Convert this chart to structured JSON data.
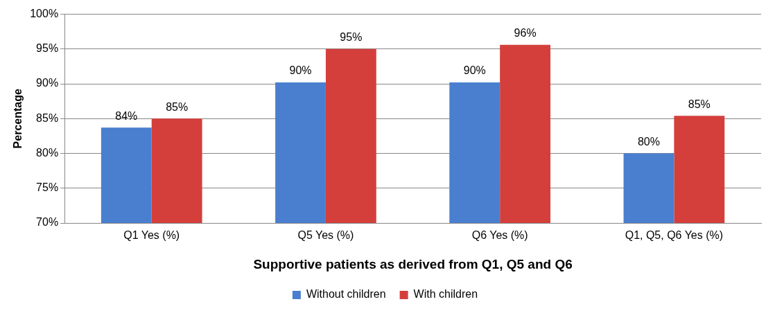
{
  "chart_data": {
    "type": "bar",
    "xlabel": "Supportive patients as derived from Q1, Q5 and Q6",
    "ylabel": "Percentage",
    "categories": [
      "Q1 Yes (%)",
      "Q5 Yes (%)",
      "Q6 Yes (%)",
      "Q1, Q5, Q6 Yes (%)"
    ],
    "series": [
      {
        "name": "Without children",
        "color": "#4a7fcf",
        "values": [
          83.7,
          90.2,
          90.2,
          80
        ],
        "value_labels": [
          "84%",
          "90%",
          "90%",
          "80%"
        ]
      },
      {
        "name": "With children",
        "color": "#d43f3c",
        "values": [
          85,
          95,
          95.6,
          85.4
        ],
        "value_labels": [
          "85%",
          "95%",
          "96%",
          "85%"
        ]
      }
    ],
    "ylim": [
      70,
      100
    ],
    "yticks": [
      {
        "value": 70,
        "label": "70%"
      },
      {
        "value": 75,
        "label": "75%"
      },
      {
        "value": 80,
        "label": "80%"
      },
      {
        "value": 85,
        "label": "85%"
      },
      {
        "value": 90,
        "label": "90%"
      },
      {
        "value": 95,
        "label": "95%"
      },
      {
        "value": 100,
        "label": "100%"
      }
    ],
    "grid": "y",
    "legend": "bottom"
  }
}
